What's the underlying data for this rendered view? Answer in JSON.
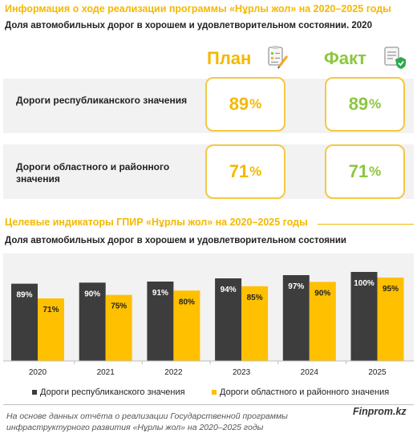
{
  "header": {
    "title": "Информация о ходе реализации программы «Нұрлы жол» на 2020–2025  годы",
    "subtitle": "Доля автомобильных  дорог в хорошем и удовлетворительном  состоянии.  2020",
    "plan_label": "План",
    "fact_label": "Факт"
  },
  "summary": {
    "rows": [
      {
        "label": "Дороги республиканского значения",
        "plan_value": "89",
        "plan_unit": "%",
        "fact_value": "89",
        "fact_unit": "%"
      },
      {
        "label": "Дороги областного и районного значения",
        "plan_value": "71",
        "plan_unit": "%",
        "fact_value": "71",
        "fact_unit": "%"
      }
    ]
  },
  "chart_section": {
    "title": "Целевые индикаторы ГПИР «Нұрлы жол» на 2020–2025  годы",
    "subtitle": "Доля автомобильных  дорог в хорошем и удовлетворительном  состоянии"
  },
  "chart_data": {
    "type": "bar",
    "title": "Целевые индикаторы ГПИР «Нұрлы жол» на 2020–2025  годы",
    "subtitle": "Доля автомобильных  дорог в хорошем и удовлетворительном  состоянии",
    "categories": [
      "2020",
      "2021",
      "2022",
      "2023",
      "2024",
      "2025"
    ],
    "series": [
      {
        "name": "Дороги республиканского значения",
        "values": [
          89,
          90,
          91,
          94,
          97,
          100
        ],
        "labels": [
          "89%",
          "90%",
          "91%",
          "94%",
          "97%",
          "100%"
        ],
        "color": "#3D3D3D"
      },
      {
        "name": "Дороги областного и районного значения",
        "values": [
          71,
          75,
          80,
          85,
          90,
          95
        ],
        "labels": [
          "71%",
          "75%",
          "80%",
          "85%",
          "90%",
          "95%"
        ],
        "color": "#FFC000"
      }
    ],
    "ylim": [
      0,
      100
    ],
    "grid": false,
    "legend": "bottom"
  },
  "footer": {
    "note": "На основе данных отчёта о реализации  Государственной программы инфраструктурного развития «Нұрлы жол» на 2020–2025 годы",
    "brand": "Finprom.kz"
  },
  "colors": {
    "accent": "#F5B800",
    "fact": "#8DC63F",
    "dark_bar": "#3D3D3D",
    "yellow_bar": "#FFC000",
    "panel": "#F2F2F2"
  },
  "icons": {
    "plan": "checklist-pencil-icon",
    "fact": "document-check-icon"
  }
}
